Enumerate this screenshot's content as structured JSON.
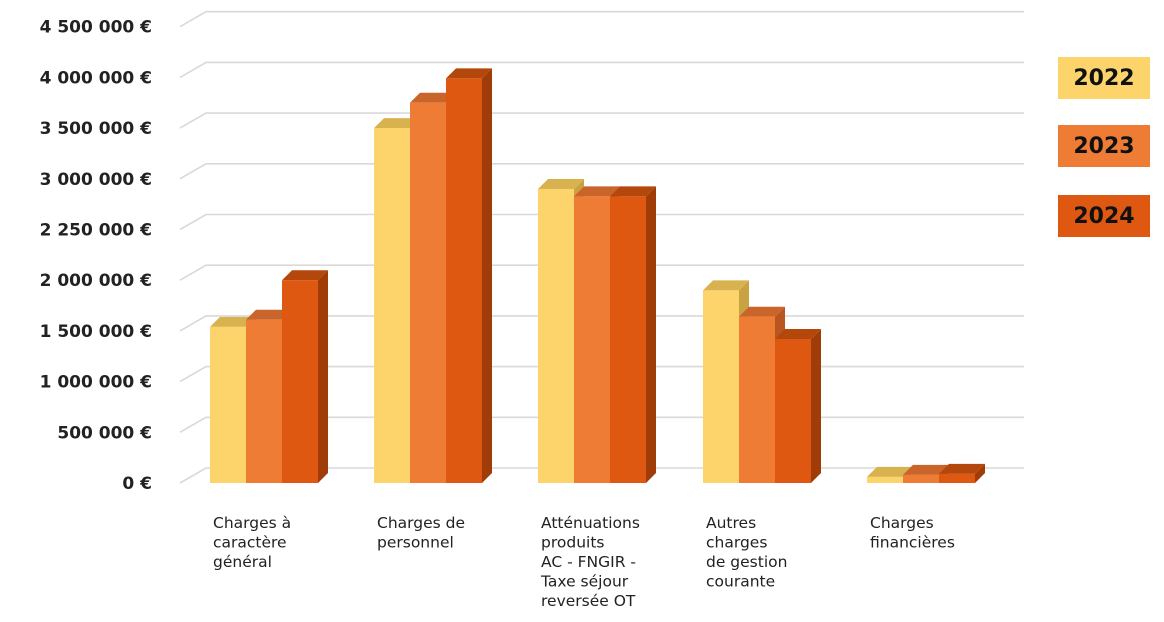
{
  "chart_data": {
    "type": "bar",
    "categories": [
      "Charges à caractère général",
      "Charges de personnel",
      "Atténuations produits AC - FNGIR - Taxe séjour reversée OT",
      "Autres charges de gestion courante",
      "Charges financières"
    ],
    "category_lines": [
      [
        "Charges à",
        "caractère",
        "général"
      ],
      [
        "Charges de",
        "personnel"
      ],
      [
        "Atténuations",
        "produits",
        "AC - FNGIR -",
        "Taxe séjour",
        "reversée OT"
      ],
      [
        "Autres",
        "charges",
        "de gestion",
        "courante"
      ],
      [
        "Charges",
        "financières"
      ]
    ],
    "series": [
      {
        "name": "2022",
        "color": "#FDD36B",
        "side": "#C9A341",
        "top": "#D7B24E",
        "values": [
          1540000,
          3500000,
          2850000,
          1900000,
          60000
        ]
      },
      {
        "name": "2023",
        "color": "#EE7C35",
        "side": "#B85520",
        "top": "#C9642A",
        "values": [
          1610000,
          3750000,
          2740000,
          1640000,
          80000
        ]
      },
      {
        "name": "2024",
        "color": "#DF5812",
        "side": "#A03C08",
        "top": "#B4470C",
        "values": [
          2000000,
          3990000,
          2740000,
          1420000,
          90000
        ]
      }
    ],
    "ytick_values": [
      0,
      500000,
      1000000,
      1500000,
      2000000,
      2250000,
      3000000,
      3500000,
      4000000,
      4500000
    ],
    "ytick_labels": [
      "0 €",
      "500 000 €",
      "1 000 000 €",
      "1 500 000 €",
      "2 000 000 €",
      "2 250 000 €",
      "3 000 000 €",
      "3 500 000 €",
      "4 000 000 €",
      "4 500 000 €"
    ],
    "grid": true,
    "legend_position": "right",
    "xlabel": "",
    "ylabel": "",
    "title": ""
  }
}
